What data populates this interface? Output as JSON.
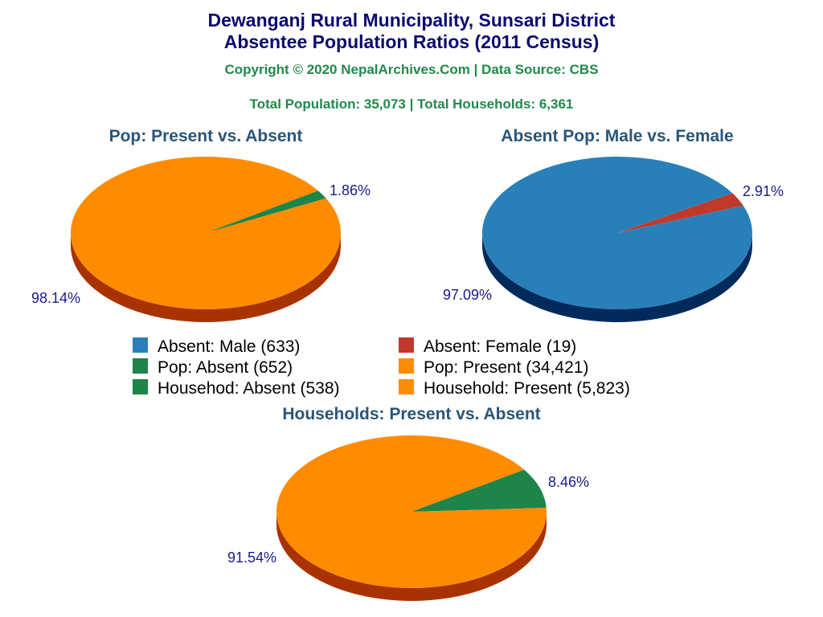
{
  "title_line1": "Dewanganj Rural Municipality, Sunsari District",
  "title_line2": "Absentee Population Ratios (2011 Census)",
  "copyright": "Copyright © 2020 NepalArchives.Com | Data Source: CBS",
  "totals": "Total Population: 35,073 | Total Households: 6,361",
  "chart_data": [
    {
      "type": "pie",
      "title": "Pop: Present vs. Absent",
      "slices": [
        {
          "name": "Pop: Absent",
          "value": 652,
          "percent_label": "1.86%",
          "color": "#1e8449"
        },
        {
          "name": "Pop: Present",
          "value": 34421,
          "percent_label": "98.14%",
          "color": "#ff8c00"
        }
      ]
    },
    {
      "type": "pie",
      "title": "Absent Pop: Male vs. Female",
      "slices": [
        {
          "name": "Absent: Female",
          "value": 19,
          "percent_label": "2.91%",
          "color": "#c0392b"
        },
        {
          "name": "Absent: Male",
          "value": 633,
          "percent_label": "97.09%",
          "color": "#2980b9"
        }
      ]
    },
    {
      "type": "pie",
      "title": "Households: Present vs. Absent",
      "slices": [
        {
          "name": "Househod: Absent",
          "value": 538,
          "percent_label": "8.46%",
          "color": "#1e8449"
        },
        {
          "name": "Household: Present",
          "value": 5823,
          "percent_label": "91.54%",
          "color": "#ff8c00"
        }
      ]
    }
  ],
  "legend": [
    {
      "label": "Absent: Male (633)",
      "color": "#2980b9"
    },
    {
      "label": "Absent: Female (19)",
      "color": "#c0392b"
    },
    {
      "label": "Pop: Absent (652)",
      "color": "#1e8449"
    },
    {
      "label": "Pop: Present (34,421)",
      "color": "#ff8c00"
    },
    {
      "label": "Househod: Absent (538)",
      "color": "#1e8449"
    },
    {
      "label": "Household: Present (5,823)",
      "color": "#ff8c00"
    }
  ]
}
